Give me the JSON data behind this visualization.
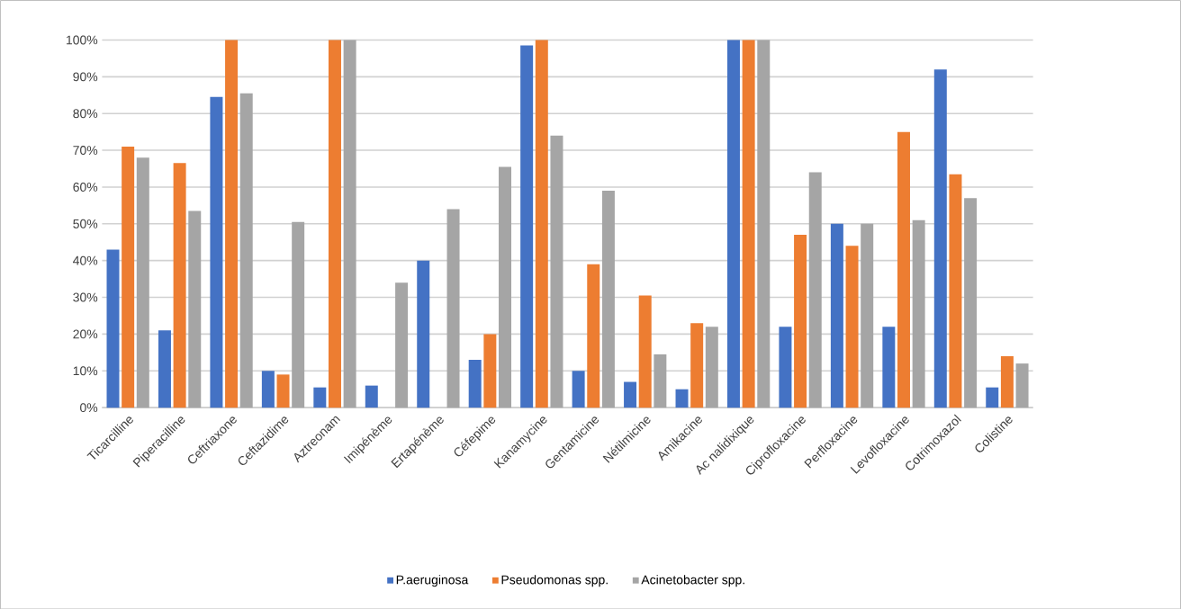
{
  "chart_data": {
    "type": "bar",
    "categories": [
      "Ticarcilline",
      "Piperacilline",
      "Ceftriaxone",
      "Ceftazidime",
      "Aztreonam",
      "Imipénème",
      "Ertapénème",
      "Céfepime",
      "Kanamycine",
      "Gentamicine",
      "Nétilmicine",
      "Amikacine",
      "Ac nalidixique",
      "Ciprofloxacine",
      "Perfloxacine",
      "Levofloxacine",
      "Cotrimoxazol",
      "Colistine"
    ],
    "series": [
      {
        "name": "P.aeruginosa",
        "color": "#4472c4",
        "values": [
          43,
          21,
          84.5,
          10,
          5.5,
          6,
          40,
          13,
          98.5,
          10,
          7,
          5,
          100,
          22,
          50,
          22,
          92,
          5.5
        ]
      },
      {
        "name": "Pseudomonas spp.",
        "color": "#ed7d31",
        "values": [
          71,
          66.5,
          100,
          9,
          100,
          0,
          0,
          20,
          100,
          39,
          30.5,
          23,
          100,
          47,
          44,
          75,
          63.5,
          14
        ]
      },
      {
        "name": "Acinetobacter spp.",
        "color": "#a5a5a5",
        "values": [
          68,
          53.5,
          85.5,
          50.5,
          100,
          34,
          54,
          65.5,
          74,
          59,
          14.5,
          22,
          100,
          64,
          50,
          51,
          57,
          12
        ]
      }
    ],
    "ylim": [
      0,
      100
    ],
    "yticks": [
      {
        "value": 0,
        "label": "0%"
      },
      {
        "value": 10,
        "label": "10%"
      },
      {
        "value": 20,
        "label": "20%"
      },
      {
        "value": 30,
        "label": "30%"
      },
      {
        "value": 40,
        "label": "40%"
      },
      {
        "value": 50,
        "label": "50%"
      },
      {
        "value": 60,
        "label": "60%"
      },
      {
        "value": 70,
        "label": "70%"
      },
      {
        "value": 80,
        "label": "80%"
      },
      {
        "value": 90,
        "label": "90%"
      },
      {
        "value": 100,
        "label": "100%"
      }
    ],
    "grid": "y",
    "legend": "bottom"
  }
}
